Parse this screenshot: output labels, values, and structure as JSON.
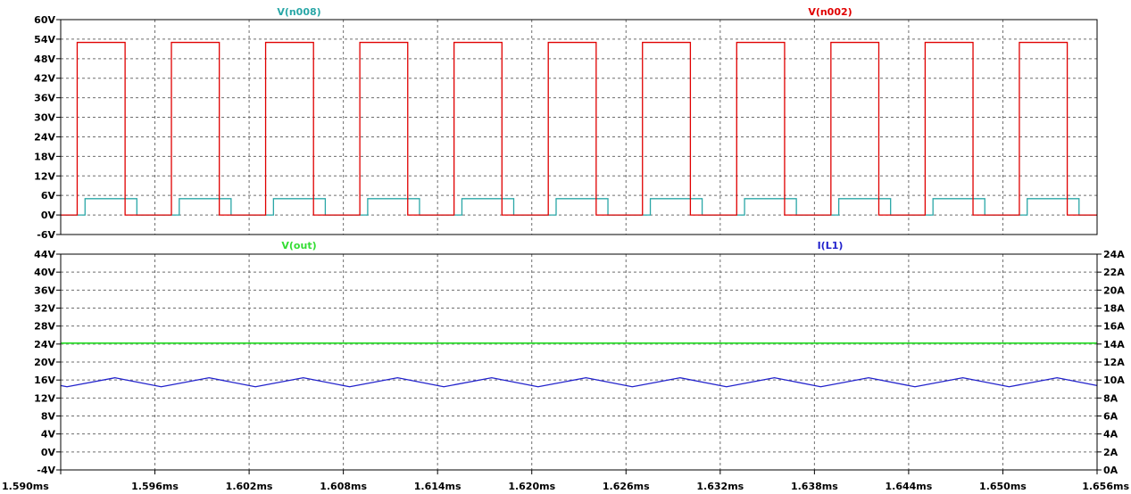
{
  "chart_data": [
    {
      "type": "line",
      "name": "top-pane",
      "xlim": [
        1.59,
        1.656
      ],
      "x_unit": "ms",
      "ylim": [
        -6,
        60
      ],
      "y_ticks": [
        -6,
        0,
        6,
        12,
        18,
        24,
        30,
        36,
        42,
        48,
        54,
        60
      ],
      "y_unit": "V",
      "grid": true,
      "series": [
        {
          "name": "V(n008)",
          "color": "#2aa7a7",
          "shape": "square",
          "period_ms": 0.006,
          "high_ms": 0.0033,
          "first_rise_ms": 1.59155,
          "high": 5,
          "low": 0
        },
        {
          "name": "V(n002)",
          "color": "#e00000",
          "shape": "square",
          "period_ms": 0.006,
          "high_ms": 0.00305,
          "first_rise_ms": 1.59105,
          "high": 53,
          "low": 0
        }
      ]
    },
    {
      "type": "line",
      "name": "bottom-pane",
      "xlim": [
        1.59,
        1.656
      ],
      "x_ticks": [
        1.59,
        1.596,
        1.602,
        1.608,
        1.614,
        1.62,
        1.626,
        1.632,
        1.638,
        1.644,
        1.65,
        1.656
      ],
      "x_unit": "ms",
      "ylim": [
        -4,
        44
      ],
      "y_ticks": [
        -4,
        0,
        4,
        8,
        12,
        16,
        20,
        24,
        28,
        32,
        36,
        40,
        44
      ],
      "y_unit": "V",
      "y2lim": [
        0,
        24
      ],
      "y2_ticks": [
        0,
        2,
        4,
        6,
        8,
        10,
        12,
        14,
        16,
        18,
        20,
        22,
        24
      ],
      "y2_unit": "A",
      "grid": true,
      "series": [
        {
          "name": "V(out)",
          "color": "#33dd33",
          "axis": "left",
          "shape": "constant",
          "value": 24.2
        },
        {
          "name": "I(L1)",
          "color": "#2222cc",
          "axis": "right",
          "shape": "triangle",
          "period_ms": 0.006,
          "peak_ms": 1.59345,
          "rise_ms": 0.00305,
          "max": 10.25,
          "min": 9.25
        }
      ]
    }
  ]
}
